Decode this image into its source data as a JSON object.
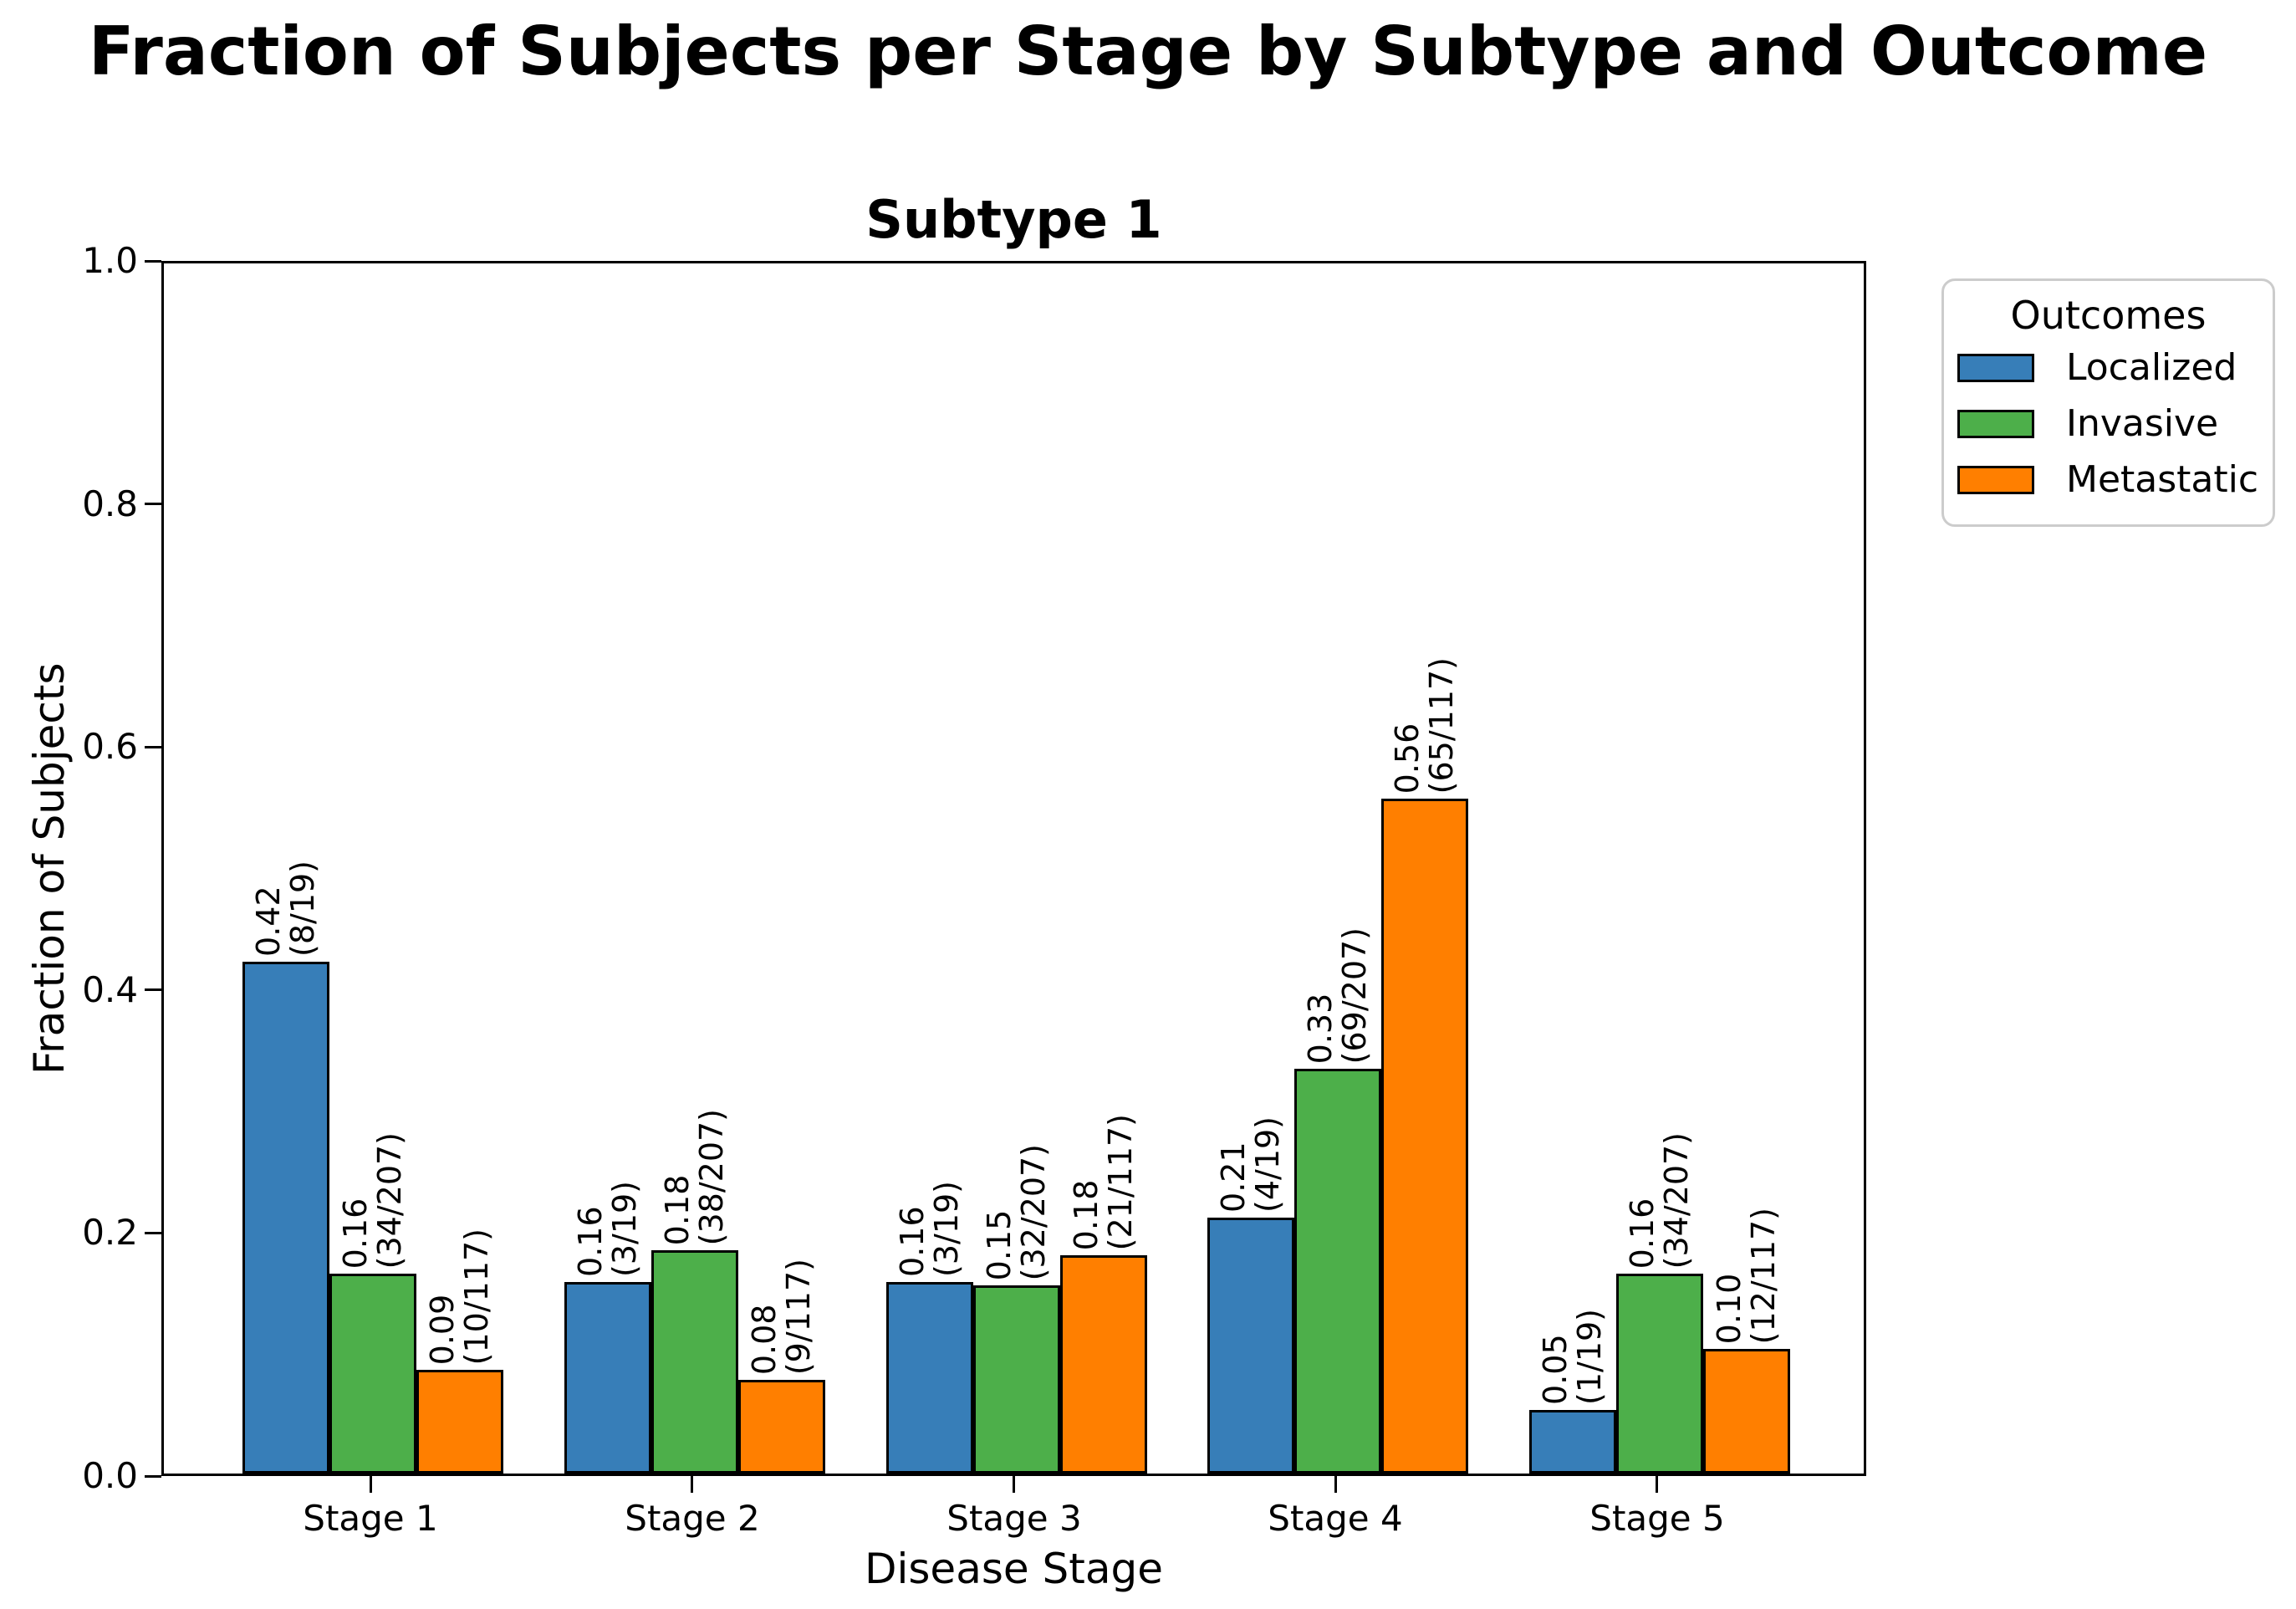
{
  "figure": {
    "title": "Fraction of Subjects per Stage by Subtype and Outcome"
  },
  "chart_data": {
    "type": "bar",
    "title": "Subtype 1",
    "xlabel": "Disease Stage",
    "ylabel": "Fraction of Subjects",
    "categories": [
      "Stage 1",
      "Stage 2",
      "Stage 3",
      "Stage 4",
      "Stage 5"
    ],
    "ylim": [
      0.0,
      1.0
    ],
    "yticks": [
      0.0,
      0.2,
      0.4,
      0.6,
      0.8,
      1.0
    ],
    "ytick_labels": [
      "0.0",
      "0.2",
      "0.4",
      "0.6",
      "0.8",
      "1.0"
    ],
    "grid": false,
    "bar_edge_color": "#000000",
    "legend": {
      "title": "Outcomes",
      "position": "outside upper right",
      "entries": [
        "Localized",
        "Invasive",
        "Metastatic"
      ]
    },
    "series": [
      {
        "name": "Localized",
        "color": "#377eb8",
        "values": [
          0.4211,
          0.1579,
          0.1579,
          0.2105,
          0.0526
        ],
        "value_labels": [
          "0.42",
          "0.16",
          "0.16",
          "0.21",
          "0.05"
        ],
        "fraction_labels": [
          "(8/19)",
          "(3/19)",
          "(3/19)",
          "(4/19)",
          "(1/19)"
        ]
      },
      {
        "name": "Invasive",
        "color": "#4daf4a",
        "values": [
          0.1643,
          0.1836,
          0.1546,
          0.3333,
          0.1643
        ],
        "value_labels": [
          "0.16",
          "0.18",
          "0.15",
          "0.33",
          "0.16"
        ],
        "fraction_labels": [
          "(34/207)",
          "(38/207)",
          "(32/207)",
          "(69/207)",
          "(34/207)"
        ]
      },
      {
        "name": "Metastatic",
        "color": "#ff7f00",
        "values": [
          0.0855,
          0.0769,
          0.1795,
          0.5556,
          0.1026
        ],
        "value_labels": [
          "0.09",
          "0.08",
          "0.18",
          "0.56",
          "0.10"
        ],
        "fraction_labels": [
          "(10/117)",
          "(9/117)",
          "(21/117)",
          "(65/117)",
          "(12/117)"
        ]
      }
    ]
  }
}
